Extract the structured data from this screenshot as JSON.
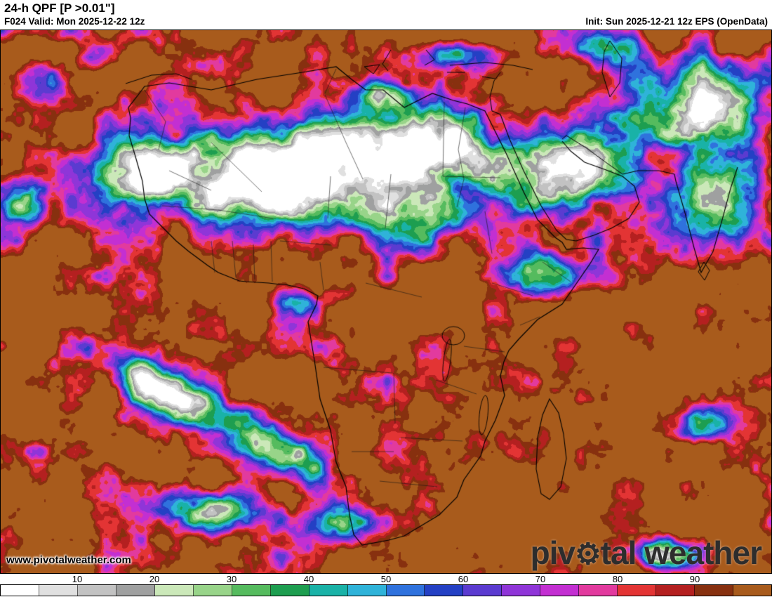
{
  "header": {
    "title": "24-h QPF [P >0.01\"]",
    "valid": "F024 Valid: Mon 2025-12-22 12z",
    "init": "Init: Sun 2025-12-21 12z EPS (OpenData)"
  },
  "map": {
    "watermark": "www.pivotalweather.com",
    "logo": {
      "pre": "piv",
      "gear": "⚙",
      "post": "tal weather"
    }
  },
  "colorbar": {
    "min": 0,
    "max": 100,
    "step": 5,
    "ticks": [
      10,
      20,
      30,
      40,
      50,
      60,
      70,
      80,
      90
    ],
    "colors": [
      "#ffffff",
      "#e0e0e0",
      "#c2c2c2",
      "#9fa0a0",
      "#cbe8b9",
      "#98d489",
      "#55bb5e",
      "#1d9e50",
      "#19b2a7",
      "#2fb3d9",
      "#2f72dd",
      "#2440c4",
      "#5b3bd0",
      "#8f35d8",
      "#c32fd2",
      "#e23a9e",
      "#e33434",
      "#b42020",
      "#87300f",
      "#a85b1c"
    ]
  }
}
